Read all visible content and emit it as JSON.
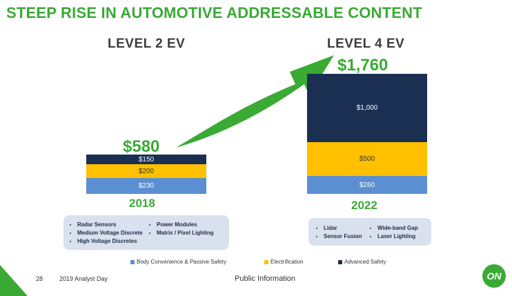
{
  "title": "STEEP RISE IN AUTOMOTIVE ADDRESSABLE CONTENT",
  "colors": {
    "green": "#3aaa35",
    "body_convenience": "#5b8fd1",
    "electrification": "#ffc000",
    "advanced_safety": "#1a2f52"
  },
  "chart_data": {
    "type": "bar",
    "stacked": true,
    "categories": [
      "2018",
      "2022"
    ],
    "headings": [
      "LEVEL 2 EV",
      "LEVEL 4 EV"
    ],
    "totals": [
      "$580",
      "$1,760"
    ],
    "series": [
      {
        "name": "Body Convenience & Passive Safety",
        "values": [
          230,
          260
        ],
        "labels": [
          "$230",
          "$260"
        ],
        "color": "#5b8fd1"
      },
      {
        "name": "Electrification",
        "values": [
          200,
          500
        ],
        "labels": [
          "$200",
          "$500"
        ],
        "color": "#ffc000"
      },
      {
        "name": "Advanced Safety",
        "values": [
          150,
          1000
        ],
        "labels": [
          "$150",
          "$1,000"
        ],
        "color": "#1a2f52"
      }
    ]
  },
  "features": {
    "left": [
      "Radar Sensors",
      "Medium Voltage Discrete",
      "High Voltage Discretes",
      "Power Modules",
      "Matrix / Pixel Lighting"
    ],
    "right": [
      "Lidar",
      "Sensor Fusion",
      "Wide-band Gap",
      "Laser Lighting"
    ]
  },
  "footer": {
    "page_number": "28",
    "event": "2019 Analyst Day",
    "classification": "Public Information",
    "logo_text": "ON"
  }
}
